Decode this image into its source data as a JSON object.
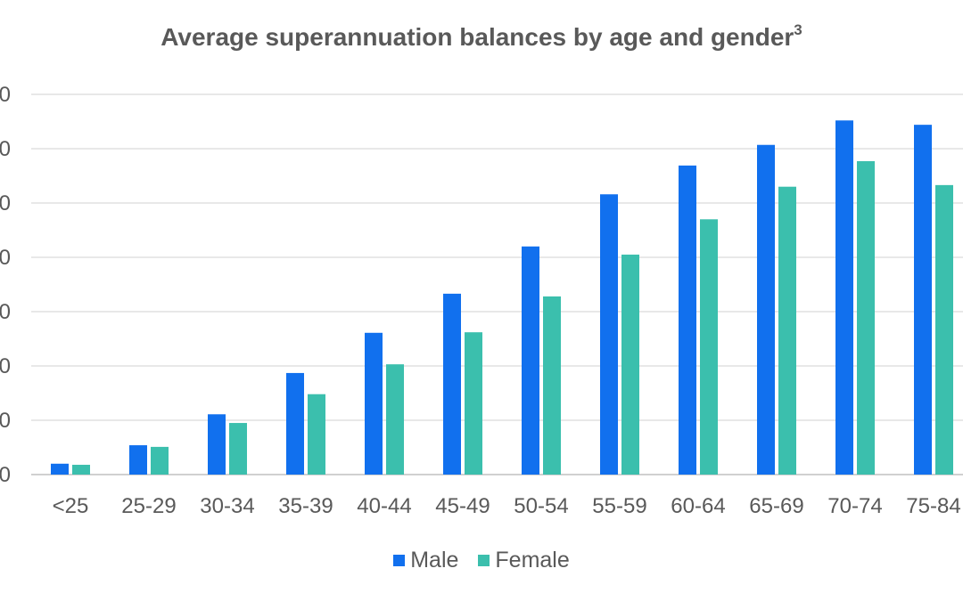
{
  "chart_data": {
    "type": "bar",
    "title": "Average superannuation balances by age and gender",
    "title_superscript": "3",
    "xlabel": "",
    "ylabel": "",
    "y_units_note": "values in gridline units (tick labels cropped)",
    "ylim": [
      0,
      7
    ],
    "y_ticks": [
      "0",
      "0",
      "0",
      "0",
      "0",
      "0",
      "0",
      "0"
    ],
    "grid": true,
    "legend_position": "bottom",
    "categories": [
      "<25",
      "25-29",
      "30-34",
      "35-39",
      "40-44",
      "45-49",
      "50-54",
      "55-59",
      "60-64",
      "65-69",
      "70-74",
      "75-84"
    ],
    "series": [
      {
        "name": "Male",
        "color": "#1170ee",
        "values": [
          0.2,
          0.54,
          1.11,
          1.87,
          2.61,
          3.33,
          4.2,
          5.16,
          5.69,
          6.07,
          6.52,
          6.44
        ]
      },
      {
        "name": "Female",
        "color": "#3bbfad",
        "values": [
          0.18,
          0.51,
          0.95,
          1.48,
          2.03,
          2.62,
          3.28,
          4.05,
          4.7,
          5.3,
          5.77,
          5.33
        ]
      }
    ]
  }
}
